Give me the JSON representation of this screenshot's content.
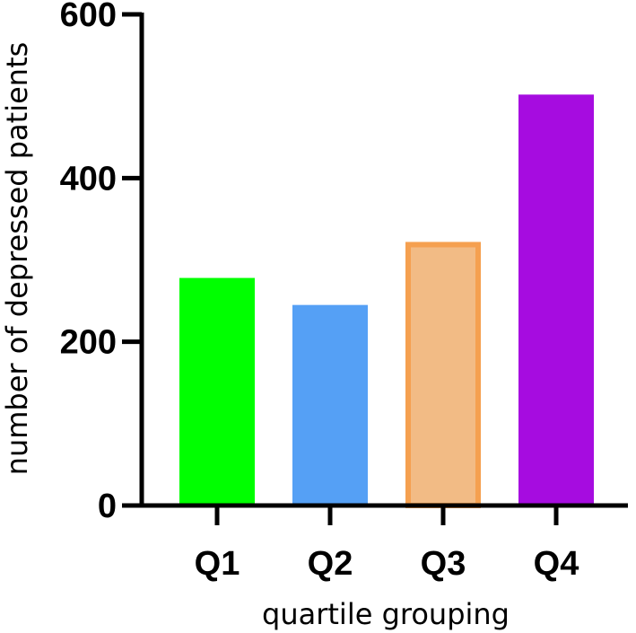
{
  "chart_data": {
    "type": "bar",
    "categories": [
      "Q1",
      "Q2",
      "Q3",
      "Q4"
    ],
    "values": [
      278,
      245,
      322,
      502
    ],
    "xlabel": "quartile grouping",
    "ylabel": "number of depressed patients",
    "ylim": [
      0,
      600
    ],
    "yticks": [
      "0",
      "200",
      "400",
      "600"
    ],
    "grid": false,
    "legend": "none",
    "colors": [
      "#00ff00",
      "#55a0f5",
      "#f2bb85",
      "#a60ce0"
    ],
    "edge_colors": [
      "#00ff00",
      "#55a0f5",
      "#f5a050",
      "#a60ce0"
    ]
  }
}
